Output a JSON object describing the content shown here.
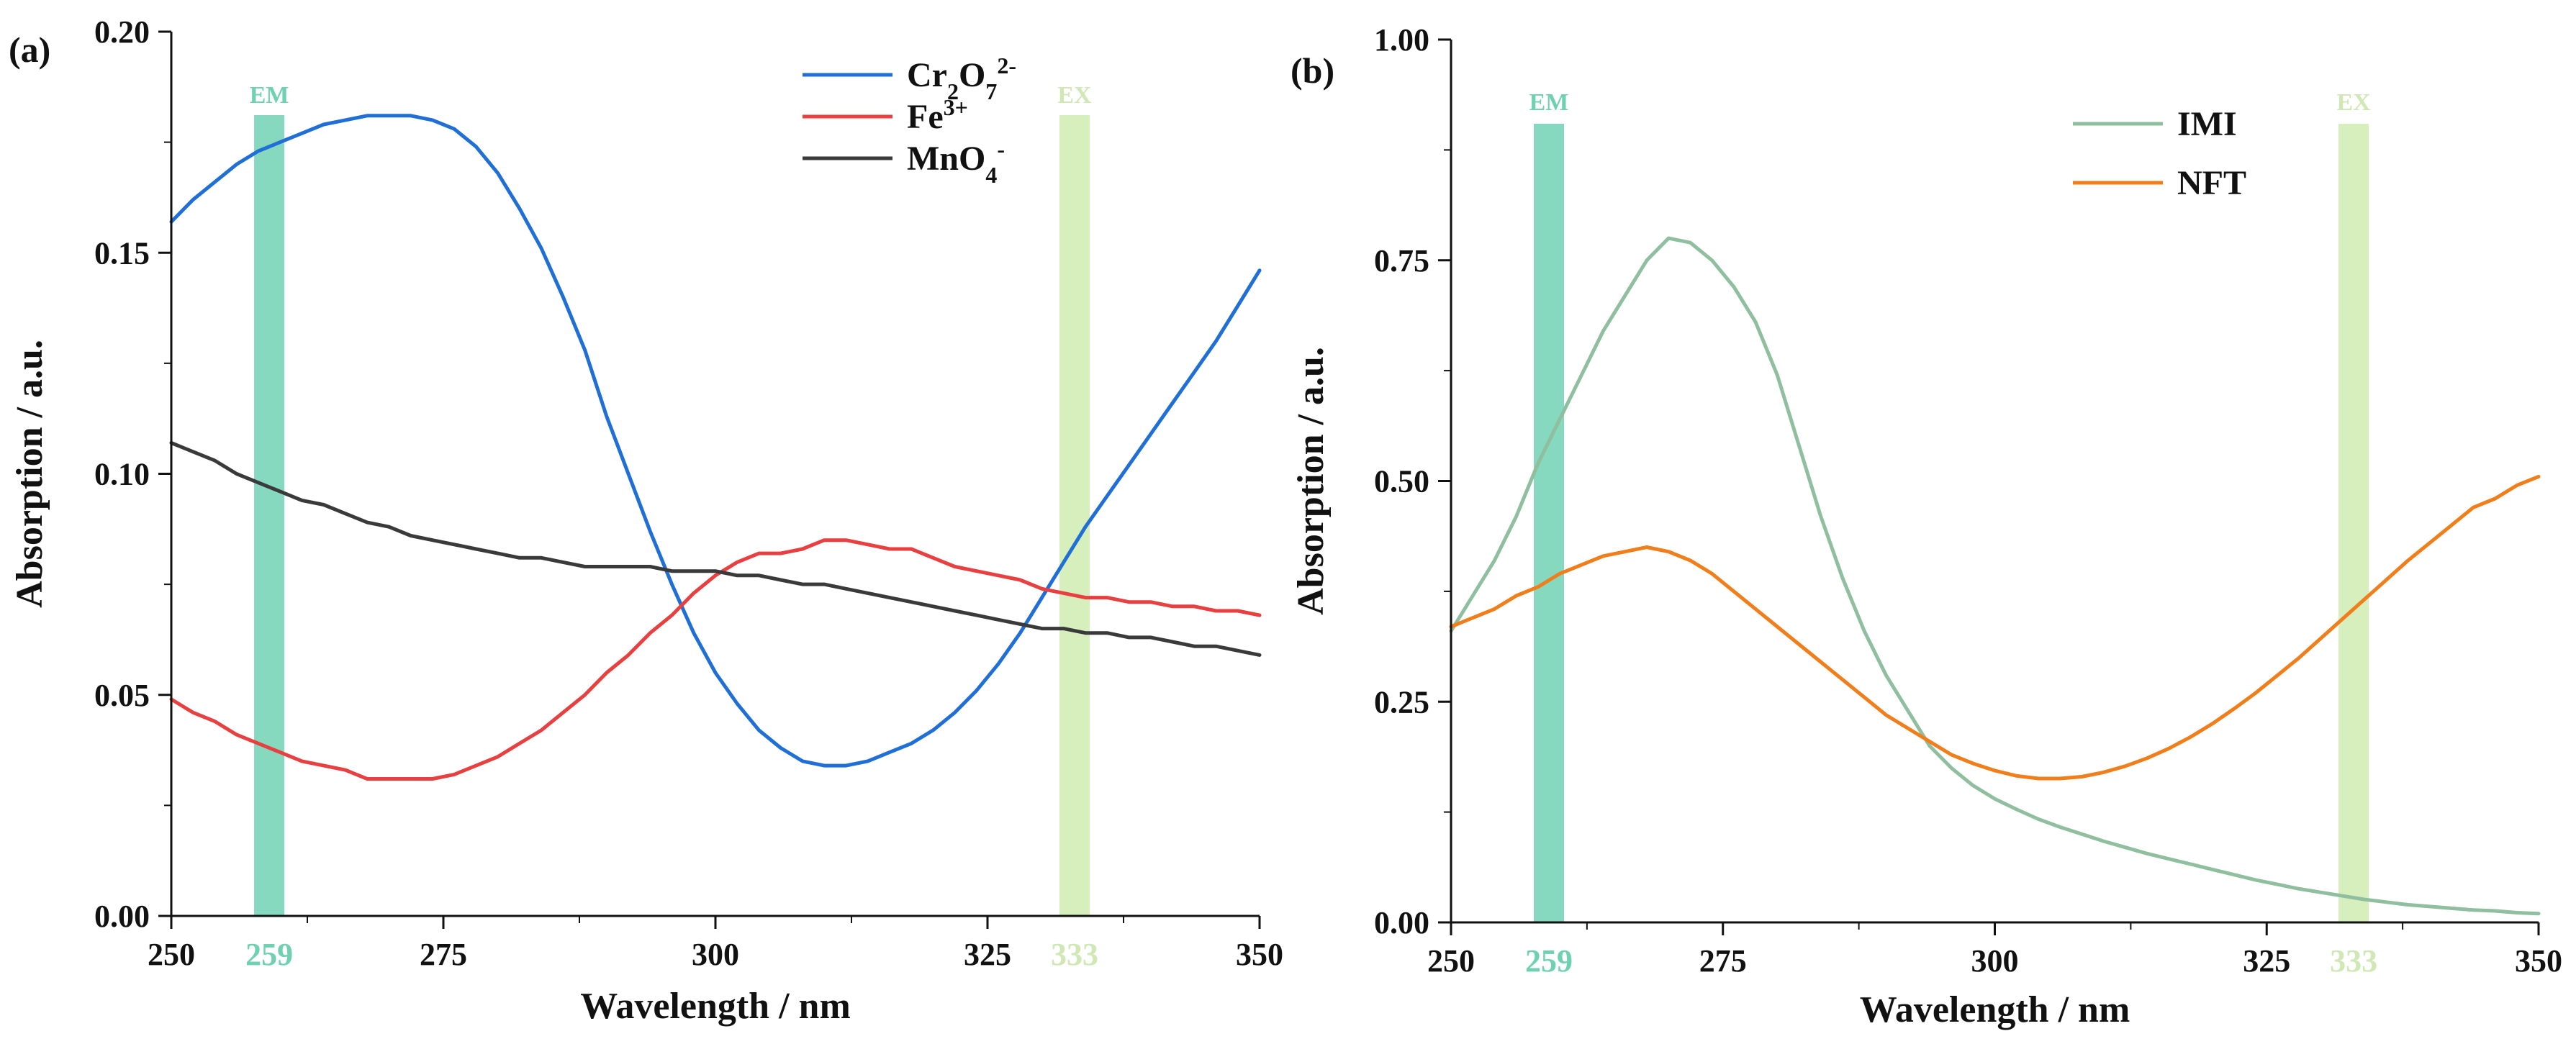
{
  "chart_data": [
    {
      "type": "line",
      "panel_label": "(a)",
      "xlabel": "Wavelength / nm",
      "ylabel": "Absorption / a.u.",
      "xlim": [
        250,
        350
      ],
      "ylim": [
        0,
        0.2
      ],
      "xticks": [
        "250",
        "275",
        "300",
        "325",
        "350"
      ],
      "yticks": [
        "0.00",
        "0.05",
        "0.10",
        "0.15",
        "0.20"
      ],
      "legend_position": "top-right",
      "bands": [
        {
          "label": "EM",
          "value": 259,
          "tick_label": "259",
          "color": "#86d9bf"
        },
        {
          "label": "EX",
          "value": 333,
          "tick_label": "333",
          "color": "#d6efbc"
        }
      ],
      "series": [
        {
          "name": "Cr2O7 2-",
          "legend": {
            "base": "Cr",
            "sub1": "2",
            "mid": "O",
            "sub2": "7",
            "sup": "2-"
          },
          "color": "#1f6fd6",
          "x": [
            250,
            252,
            254,
            256,
            258,
            260,
            262,
            264,
            266,
            268,
            270,
            272,
            274,
            276,
            278,
            280,
            282,
            284,
            286,
            288,
            290,
            292,
            294,
            296,
            298,
            300,
            302,
            304,
            306,
            308,
            310,
            312,
            314,
            316,
            318,
            320,
            322,
            324,
            326,
            328,
            330,
            332,
            334,
            336,
            338,
            340,
            342,
            344,
            346,
            348,
            350
          ],
          "y": [
            0.157,
            0.162,
            0.166,
            0.17,
            0.173,
            0.175,
            0.177,
            0.179,
            0.18,
            0.181,
            0.181,
            0.181,
            0.18,
            0.178,
            0.174,
            0.168,
            0.16,
            0.151,
            0.14,
            0.128,
            0.113,
            0.1,
            0.087,
            0.075,
            0.064,
            0.055,
            0.048,
            0.042,
            0.038,
            0.035,
            0.034,
            0.034,
            0.035,
            0.037,
            0.039,
            0.042,
            0.046,
            0.051,
            0.057,
            0.064,
            0.072,
            0.08,
            0.088,
            0.095,
            0.102,
            0.109,
            0.116,
            0.123,
            0.13,
            0.138,
            0.146
          ]
        },
        {
          "name": "Fe3+",
          "legend": {
            "base": "Fe",
            "sup": "3+"
          },
          "color": "#e84040",
          "x": [
            250,
            252,
            254,
            256,
            258,
            260,
            262,
            264,
            266,
            268,
            270,
            272,
            274,
            276,
            278,
            280,
            282,
            284,
            286,
            288,
            290,
            292,
            294,
            296,
            298,
            300,
            302,
            304,
            306,
            308,
            310,
            312,
            314,
            316,
            318,
            320,
            322,
            324,
            326,
            328,
            330,
            332,
            334,
            336,
            338,
            340,
            342,
            344,
            346,
            348,
            350
          ],
          "y": [
            0.049,
            0.046,
            0.044,
            0.041,
            0.039,
            0.037,
            0.035,
            0.034,
            0.033,
            0.031,
            0.031,
            0.031,
            0.031,
            0.032,
            0.034,
            0.036,
            0.039,
            0.042,
            0.046,
            0.05,
            0.055,
            0.059,
            0.064,
            0.068,
            0.073,
            0.077,
            0.08,
            0.082,
            0.082,
            0.083,
            0.085,
            0.085,
            0.084,
            0.083,
            0.083,
            0.081,
            0.079,
            0.078,
            0.077,
            0.076,
            0.074,
            0.073,
            0.072,
            0.072,
            0.071,
            0.071,
            0.07,
            0.07,
            0.069,
            0.069,
            0.068
          ]
        },
        {
          "name": "MnO4-",
          "legend": {
            "base": "MnO",
            "sub1": "4",
            "sup": "-"
          },
          "color": "#3a3a3a",
          "x": [
            250,
            252,
            254,
            256,
            258,
            260,
            262,
            264,
            266,
            268,
            270,
            272,
            274,
            276,
            278,
            280,
            282,
            284,
            286,
            288,
            290,
            292,
            294,
            296,
            298,
            300,
            302,
            304,
            306,
            308,
            310,
            312,
            314,
            316,
            318,
            320,
            322,
            324,
            326,
            328,
            330,
            332,
            334,
            336,
            338,
            340,
            342,
            344,
            346,
            348,
            350
          ],
          "y": [
            0.107,
            0.105,
            0.103,
            0.1,
            0.098,
            0.096,
            0.094,
            0.093,
            0.091,
            0.089,
            0.088,
            0.086,
            0.085,
            0.084,
            0.083,
            0.082,
            0.081,
            0.081,
            0.08,
            0.079,
            0.079,
            0.079,
            0.079,
            0.078,
            0.078,
            0.078,
            0.077,
            0.077,
            0.076,
            0.075,
            0.075,
            0.074,
            0.073,
            0.072,
            0.071,
            0.07,
            0.069,
            0.068,
            0.067,
            0.066,
            0.065,
            0.065,
            0.064,
            0.064,
            0.063,
            0.063,
            0.062,
            0.061,
            0.061,
            0.06,
            0.059
          ]
        }
      ]
    },
    {
      "type": "line",
      "panel_label": "(b)",
      "xlabel": "Wavelength / nm",
      "ylabel": "Absorption / a.u.",
      "xlim": [
        250,
        350
      ],
      "ylim": [
        0,
        1.0
      ],
      "xticks": [
        "250",
        "275",
        "300",
        "325",
        "350"
      ],
      "yticks": [
        "0.00",
        "0.25",
        "0.50",
        "0.75",
        "1.00"
      ],
      "legend_position": "top-right",
      "bands": [
        {
          "label": "EM",
          "value": 259,
          "tick_label": "259",
          "color": "#86d9bf"
        },
        {
          "label": "EX",
          "value": 333,
          "tick_label": "333",
          "color": "#d6efbc"
        }
      ],
      "series": [
        {
          "name": "IMI",
          "legend": {
            "base": "IMI"
          },
          "color": "#8fbf9f",
          "x": [
            250,
            252,
            254,
            256,
            258,
            260,
            262,
            264,
            266,
            268,
            270,
            272,
            274,
            276,
            278,
            280,
            282,
            284,
            286,
            288,
            290,
            292,
            294,
            296,
            298,
            300,
            302,
            304,
            306,
            308,
            310,
            312,
            314,
            316,
            318,
            320,
            322,
            324,
            326,
            328,
            330,
            332,
            334,
            336,
            338,
            340,
            342,
            344,
            346,
            348,
            350
          ],
          "y": [
            0.33,
            0.37,
            0.41,
            0.46,
            0.52,
            0.57,
            0.62,
            0.67,
            0.71,
            0.75,
            0.775,
            0.77,
            0.75,
            0.72,
            0.68,
            0.62,
            0.54,
            0.46,
            0.39,
            0.33,
            0.28,
            0.24,
            0.2,
            0.175,
            0.155,
            0.14,
            0.128,
            0.117,
            0.108,
            0.1,
            0.092,
            0.085,
            0.078,
            0.072,
            0.066,
            0.06,
            0.054,
            0.048,
            0.043,
            0.038,
            0.034,
            0.03,
            0.026,
            0.023,
            0.02,
            0.018,
            0.016,
            0.014,
            0.013,
            0.011,
            0.01
          ]
        },
        {
          "name": "NFT",
          "legend": {
            "base": "NFT"
          },
          "color": "#f07e1b",
          "x": [
            250,
            252,
            254,
            256,
            258,
            260,
            262,
            264,
            266,
            268,
            270,
            272,
            274,
            276,
            278,
            280,
            282,
            284,
            286,
            288,
            290,
            292,
            294,
            296,
            298,
            300,
            302,
            304,
            306,
            308,
            310,
            312,
            314,
            316,
            318,
            320,
            322,
            324,
            326,
            328,
            330,
            332,
            334,
            336,
            338,
            340,
            342,
            344,
            346,
            348,
            350
          ],
          "y": [
            0.335,
            0.345,
            0.355,
            0.37,
            0.38,
            0.395,
            0.405,
            0.415,
            0.42,
            0.425,
            0.42,
            0.41,
            0.395,
            0.375,
            0.355,
            0.335,
            0.315,
            0.295,
            0.275,
            0.255,
            0.235,
            0.22,
            0.205,
            0.19,
            0.18,
            0.172,
            0.166,
            0.163,
            0.163,
            0.165,
            0.17,
            0.177,
            0.186,
            0.197,
            0.21,
            0.225,
            0.242,
            0.26,
            0.28,
            0.3,
            0.322,
            0.344,
            0.366,
            0.388,
            0.41,
            0.43,
            0.45,
            0.47,
            0.48,
            0.495,
            0.505
          ]
        }
      ]
    }
  ]
}
